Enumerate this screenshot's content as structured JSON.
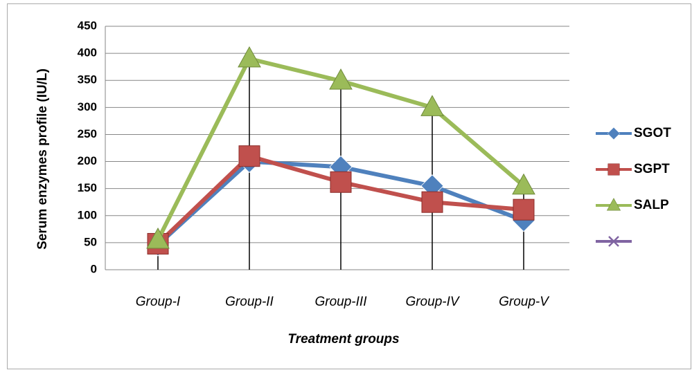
{
  "chart_data": {
    "type": "line",
    "y_label": "Serum enzymes profile (IU/L)",
    "x_label": "Treatment groups",
    "categories": [
      "Group-I",
      "Group-II",
      "Group-III",
      "Group-IV",
      "Group-V"
    ],
    "series": [
      {
        "name": "SGOT",
        "color": "#4f81bd",
        "marker": "diamond",
        "values": [
          46,
          200,
          190,
          155,
          91
        ]
      },
      {
        "name": "SGPT",
        "color": "#c0504d",
        "marker": "square",
        "values": [
          48,
          210,
          162,
          125,
          111
        ]
      },
      {
        "name": "SALP",
        "color": "#9bbb59",
        "marker": "triangle",
        "values": [
          55,
          390,
          349,
          300,
          155
        ]
      }
    ],
    "ylim": [
      0,
      450
    ],
    "yticks": [
      0,
      50,
      100,
      150,
      200,
      250,
      300,
      350,
      400,
      450
    ],
    "grid": true,
    "drop_lines": true,
    "legend": "right"
  }
}
